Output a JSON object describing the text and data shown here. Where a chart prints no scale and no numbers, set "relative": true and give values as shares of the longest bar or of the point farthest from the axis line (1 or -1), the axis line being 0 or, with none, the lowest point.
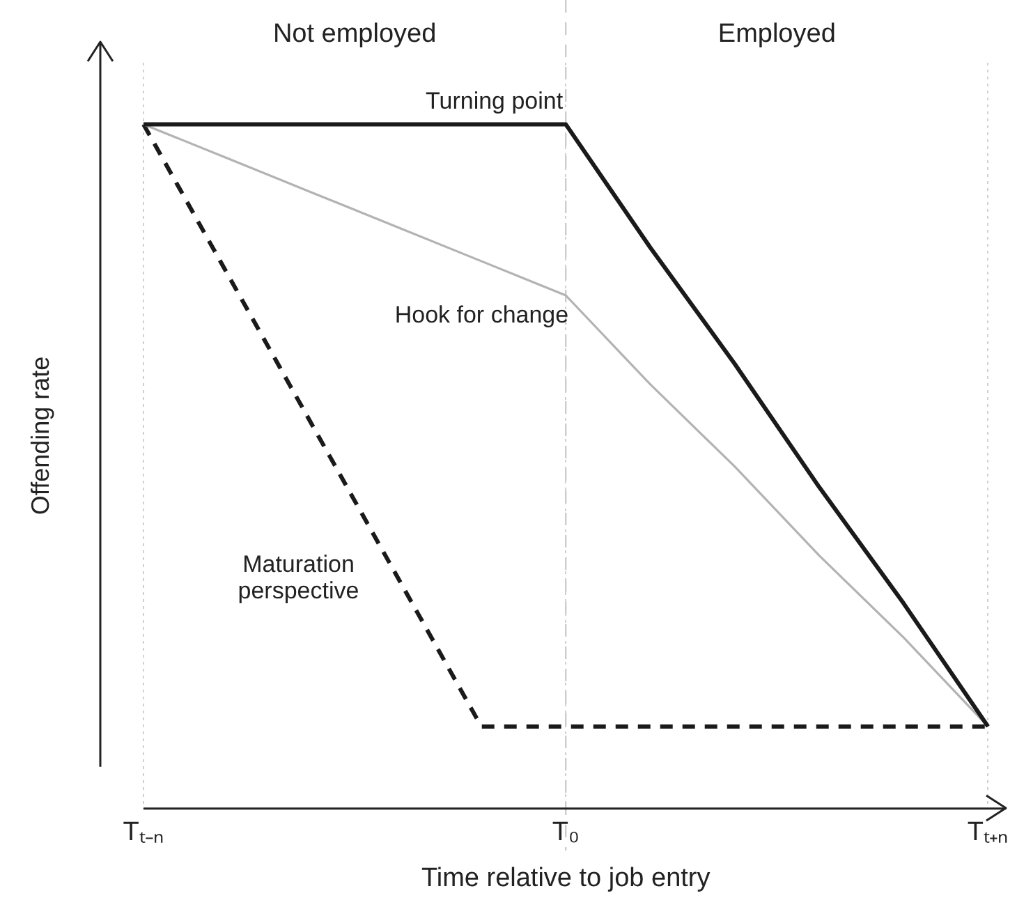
{
  "chart_data": {
    "type": "line",
    "relative": true,
    "xlabel": "Time relative to job entry",
    "ylabel": "Offending rate",
    "annotations": [
      "Not employed",
      "Employed"
    ],
    "categories": [
      "Tₜ₋ₙ",
      null,
      null,
      null,
      null,
      "T₀",
      null,
      null,
      null,
      null,
      "Tₜ₊ₙ"
    ],
    "grid": "x",
    "legend": false,
    "marker": "none",
    "ref_lines": [
      {
        "axis": "x",
        "value": "T₀",
        "color": "#cccccc",
        "line_style": "dashed"
      }
    ],
    "series": [
      {
        "name": "Turning point",
        "color": "#1a1a1a",
        "line_style": "solid",
        "values": [
          1,
          1,
          1,
          1,
          1,
          1,
          0.82,
          0.65,
          0.47,
          0.3,
          0.12
        ]
      },
      {
        "name": "Hook for change",
        "color": "#b3b3b3",
        "line_style": "solid",
        "values": [
          1,
          0.95,
          0.9,
          0.85,
          0.8,
          0.75,
          0.62,
          0.5,
          0.37,
          0.25,
          0.12
        ]
      },
      {
        "name": "Maturation perspective",
        "color": "#1a1a1a",
        "line_style": "dashed",
        "values": [
          1,
          0.78,
          0.56,
          0.34,
          0.12,
          0.12,
          0.12,
          0.12,
          0.12,
          0.12,
          0.12
        ]
      }
    ]
  }
}
